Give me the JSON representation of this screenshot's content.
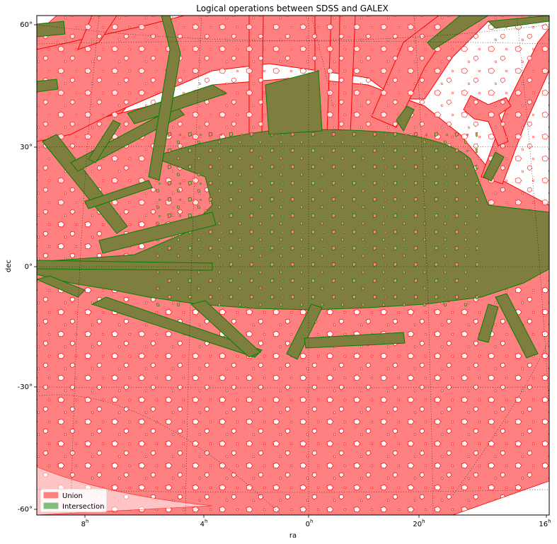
{
  "title": "Logical operations between SDSS and GALEX",
  "xlabel": "ra",
  "ylabel": "dec",
  "x_ticks": [
    {
      "label": "8",
      "sup": "h"
    },
    {
      "label": "4",
      "sup": "h"
    },
    {
      "label": "0",
      "sup": "h"
    },
    {
      "label": "20",
      "sup": "h"
    },
    {
      "label": "16",
      "sup": "h"
    }
  ],
  "y_ticks": [
    {
      "label": "60°"
    },
    {
      "label": "30°"
    },
    {
      "label": "0°"
    },
    {
      "label": "-30°"
    },
    {
      "label": "-60°"
    }
  ],
  "legend": [
    {
      "label": "Union",
      "color": "#ff8080"
    },
    {
      "label": "Intersection",
      "color": "#7f7f3f"
    }
  ],
  "colors": {
    "union_fill": "#ff8080",
    "union_edge": "#ff0000",
    "intersection_fill": "#7e7e3e",
    "intersection_edge": "#008000"
  }
}
